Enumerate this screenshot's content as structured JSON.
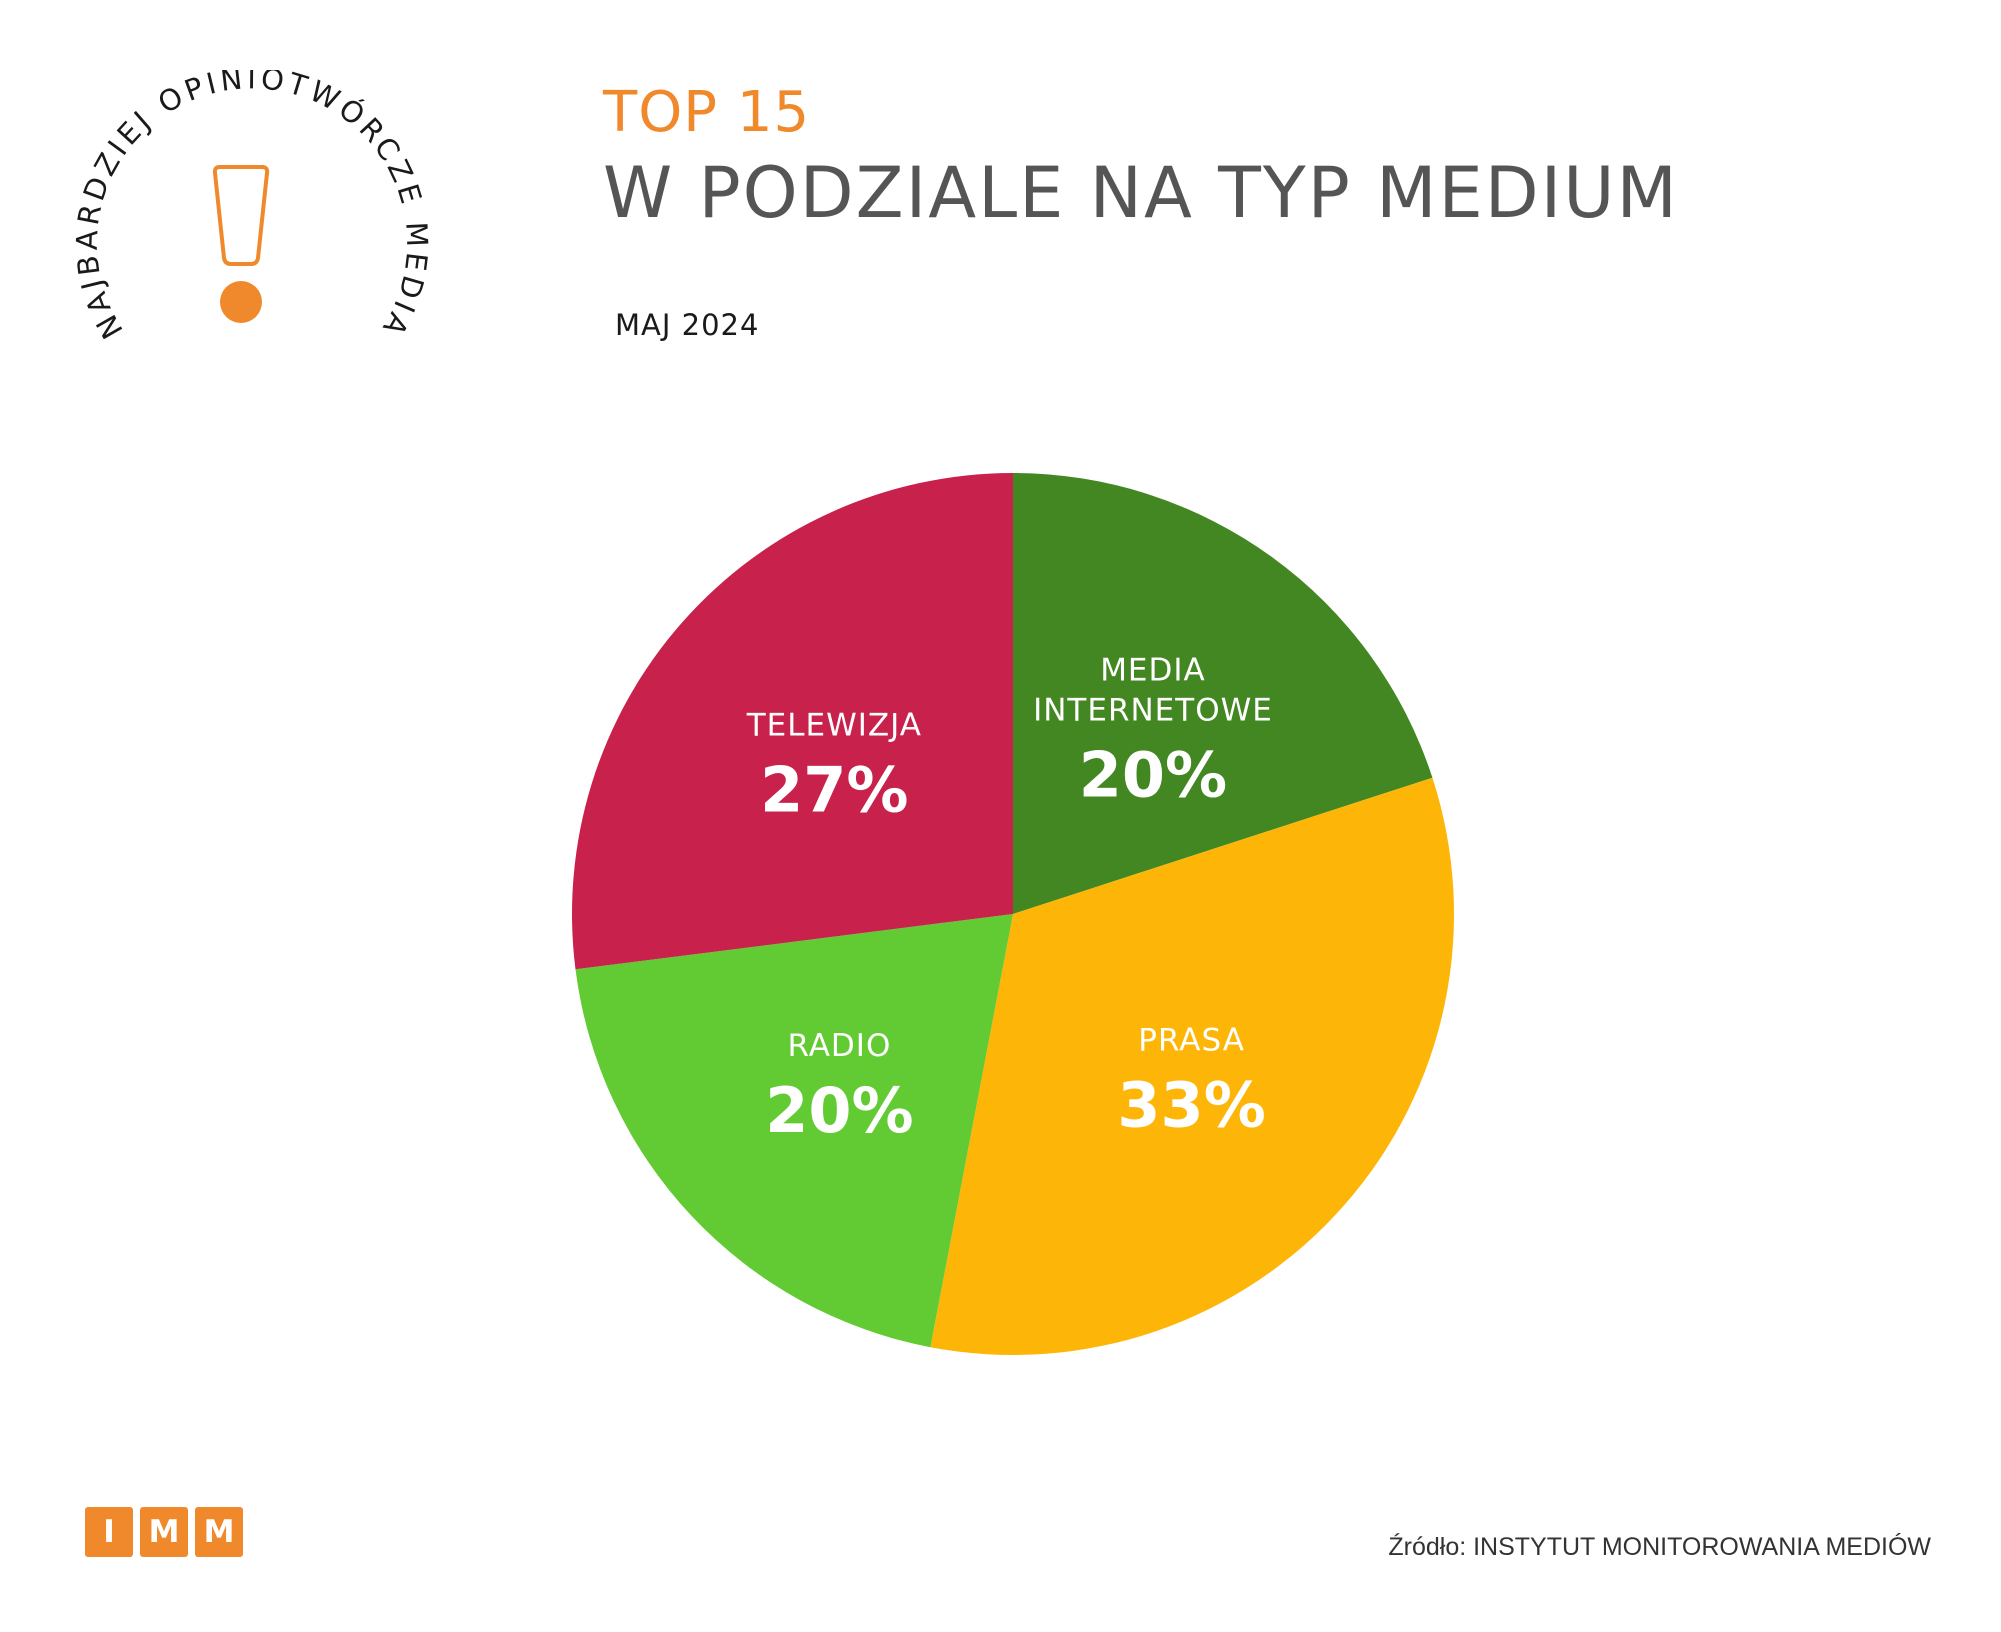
{
  "badge": {
    "arc_text": "NAJBARDZIEJ OPINIOTWÓRCZE MEDIA",
    "icon": "exclamation-icon",
    "accent_color": "#F0892B"
  },
  "header": {
    "title_top": "TOP 15",
    "title_main": "W PODZIALE NA TYP MEDIUM",
    "period": "MAJ 2024"
  },
  "chart_data": {
    "type": "pie",
    "title": "W PODZIALE NA TYP MEDIUM",
    "slices": [
      {
        "label": "MEDIA INTERNETOWE",
        "label_lines": [
          "MEDIA",
          "INTERNETOWE"
        ],
        "value": 20,
        "pct_text": "20%",
        "color": "#438722"
      },
      {
        "label": "PRASA",
        "label_lines": [
          "PRASA"
        ],
        "value": 33,
        "pct_text": "33%",
        "color": "#FDB508"
      },
      {
        "label": "RADIO",
        "label_lines": [
          "RADIO"
        ],
        "value": 20,
        "pct_text": "20%",
        "color": "#62CA32"
      },
      {
        "label": "TELEWIZJA",
        "label_lines": [
          "TELEWIZJA"
        ],
        "value": 27,
        "pct_text": "27%",
        "color": "#C8214C"
      }
    ]
  },
  "footer": {
    "logo_letters": [
      "I",
      "M",
      "M"
    ],
    "source": "Źródło: INSTYTUT MONITOROWANIA MEDIÓW"
  }
}
